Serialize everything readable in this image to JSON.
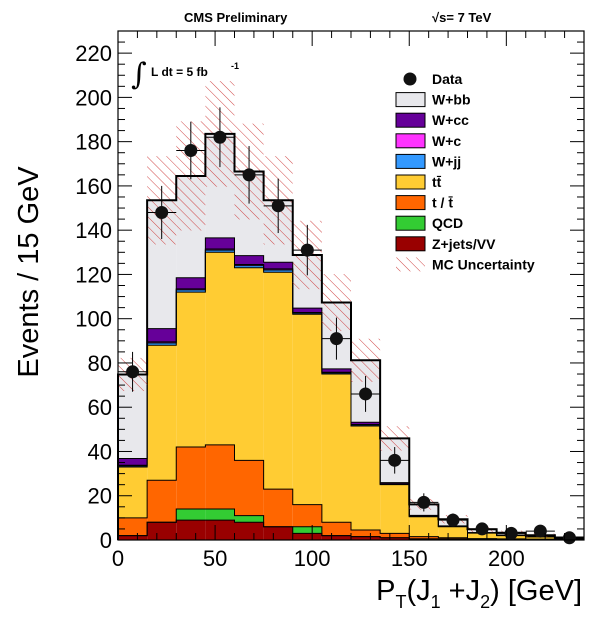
{
  "header": {
    "left": "CMS Preliminary",
    "right": "√s= 7 TeV"
  },
  "lumi": {
    "symbol": "∫",
    "text": "L dt = 5 fb",
    "exponent": "-1"
  },
  "chart_data": {
    "type": "bar",
    "stacked": true,
    "xlabel": "P_T(J_1 +J_2) [GeV]",
    "ylabel": "Events / 15 GeV",
    "xlim": [
      0,
      240
    ],
    "ylim": [
      0,
      230
    ],
    "x_ticks": [
      "0",
      "50",
      "100",
      "150",
      "200"
    ],
    "y_ticks": [
      "0",
      "20",
      "40",
      "60",
      "80",
      "100",
      "120",
      "140",
      "160",
      "180",
      "200",
      "220"
    ],
    "bin_edges": [
      0,
      15,
      30,
      45,
      60,
      75,
      90,
      105,
      120,
      135,
      150,
      165,
      180,
      195,
      210,
      225,
      240
    ],
    "series": [
      {
        "name": "Z+jets/VV",
        "color": "#990000",
        "values": [
          2,
          8,
          9,
          9,
          8,
          6,
          3,
          2,
          1.5,
          1,
          0.5,
          0.5,
          0.3,
          0.3,
          0.2,
          0.1
        ]
      },
      {
        "name": "QCD",
        "color": "#33cc33",
        "values": [
          0,
          0,
          5,
          5,
          3,
          0,
          3,
          0,
          0,
          0,
          0,
          0,
          0,
          0,
          0,
          0
        ]
      },
      {
        "name": "t / t̄",
        "color": "#ff6600",
        "values": [
          8,
          19,
          28,
          29,
          25,
          17,
          10,
          6,
          3,
          2,
          1,
          0.5,
          0.3,
          0.2,
          0.2,
          0.1
        ]
      },
      {
        "name": "tt̄",
        "color": "#ffcc33",
        "values": [
          23,
          61,
          70,
          87,
          87,
          98,
          86,
          67,
          47,
          22,
          9,
          5,
          2.5,
          1.5,
          1,
          0.5
        ]
      },
      {
        "name": "W+jj",
        "color": "#3399ff",
        "values": [
          0.5,
          1,
          1,
          1,
          1,
          1,
          0.5,
          0.5,
          0.5,
          0.3,
          0.2,
          0.1,
          0.1,
          0.1,
          0.1,
          0.05
        ]
      },
      {
        "name": "W+c",
        "color": "#ff33ff",
        "values": [
          0.3,
          0.5,
          0.5,
          0.5,
          0.5,
          0.5,
          0.3,
          0.3,
          0.2,
          0.1,
          0.1,
          0.1,
          0.05,
          0.05,
          0.05,
          0.02
        ]
      },
      {
        "name": "W+cc",
        "color": "#660099",
        "values": [
          3,
          6,
          5,
          5,
          4,
          3,
          2,
          1.5,
          1,
          0.5,
          0.3,
          0.2,
          0.1,
          0.1,
          0.1,
          0.05
        ]
      },
      {
        "name": "W+bb",
        "color": "#e8e8ec",
        "values": [
          38,
          58,
          46,
          47,
          38,
          28,
          24,
          30,
          28,
          20,
          5,
          3,
          1.5,
          1,
          0.5,
          0.3
        ]
      }
    ],
    "data_points": {
      "name": "Data",
      "values": [
        76,
        148,
        176,
        182,
        165,
        151,
        131,
        91,
        66,
        36,
        17,
        9,
        5,
        3,
        4,
        1
      ],
      "errors": [
        9,
        12,
        13,
        13.5,
        13,
        12.3,
        11.4,
        9.5,
        8.1,
        6,
        4.1,
        3,
        2.2,
        1.7,
        2,
        1
      ]
    },
    "uncertainty": {
      "name": "MC Uncertainty",
      "frac": [
        0.1,
        0.13,
        0.15,
        0.13,
        0.13,
        0.13,
        0.12,
        0.12,
        0.12,
        0.12,
        0.15,
        0.2,
        0.25,
        0.3,
        0.35,
        0.4
      ]
    },
    "legend": {
      "position": "top-right",
      "entries": [
        {
          "label": "Data",
          "kind": "marker",
          "color": "#000000"
        },
        {
          "label": "W+bb",
          "kind": "fill",
          "color": "#e8e8ec"
        },
        {
          "label": "W+cc",
          "kind": "fill",
          "color": "#660099"
        },
        {
          "label": "W+c",
          "kind": "fill",
          "color": "#ff33ff"
        },
        {
          "label": "W+jj",
          "kind": "fill",
          "color": "#3399ff"
        },
        {
          "label": "tt̄",
          "kind": "fill",
          "color": "#ffcc33"
        },
        {
          "label": "t / t̄",
          "kind": "fill",
          "color": "#ff6600"
        },
        {
          "label": "QCD",
          "kind": "fill",
          "color": "#33cc33"
        },
        {
          "label": "Z+jets/VV",
          "kind": "fill",
          "color": "#990000"
        },
        {
          "label": "MC Uncertainty",
          "kind": "hatch",
          "color": "#cc3333"
        }
      ]
    },
    "grid": false
  }
}
